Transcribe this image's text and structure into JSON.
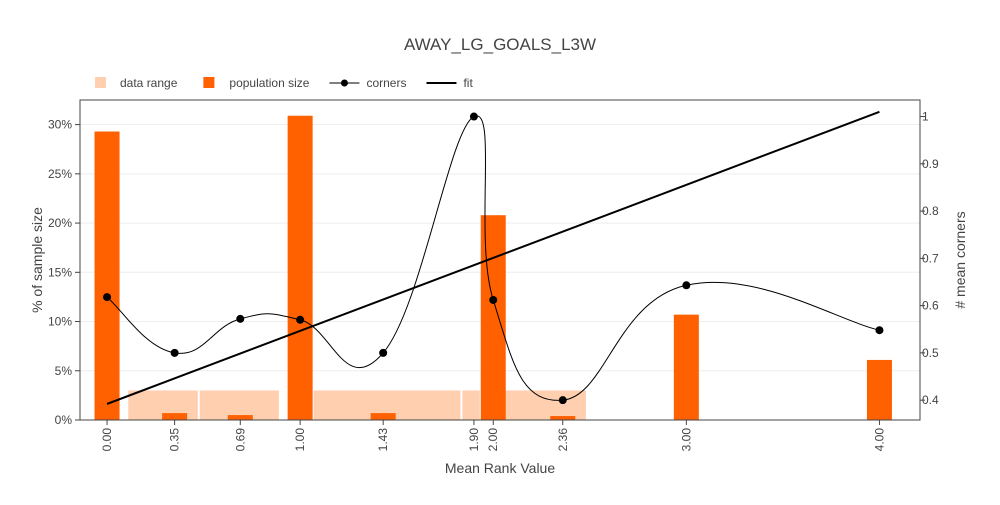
{
  "chart_data": {
    "type": "bar",
    "title": "AWAY_LG_GOALS_L3W",
    "xlabel": "Mean Rank Value",
    "ylabel": "% of sample size",
    "y2label": "# mean corners",
    "xlim": [
      -0.14,
      4.21
    ],
    "ylim": [
      0,
      32.5
    ],
    "y2lim": [
      0.358,
      1.035
    ],
    "yticks": [
      0,
      5,
      10,
      15,
      20,
      25,
      30
    ],
    "yticklabels": [
      "0%",
      "5%",
      "10%",
      "15%",
      "20%",
      "25%",
      "30%"
    ],
    "y2ticks": [
      0.4,
      0.5,
      0.6,
      0.7,
      0.8,
      0.9,
      1
    ],
    "y2ticklabels": [
      "0.4",
      "0.5",
      "0.6",
      "0.7",
      "0.8",
      "0.9",
      "1"
    ],
    "xticks": [
      0.0,
      0.35,
      0.69,
      1.0,
      1.43,
      1.9,
      2.0,
      2.36,
      3.0,
      4.0
    ],
    "xticklabels": [
      "0.00",
      "0.35",
      "0.69",
      "1.00",
      "1.43",
      "1.90",
      "2.00",
      "2.36",
      "3.00",
      "4.00"
    ],
    "legend": {
      "placement": "top-left",
      "items": [
        {
          "label": "data range",
          "kind": "bar-light"
        },
        {
          "label": "population size",
          "kind": "bar"
        },
        {
          "label": "corners",
          "kind": "line-marker"
        },
        {
          "label": "fit",
          "kind": "line"
        }
      ]
    },
    "colors": {
      "population": "#ff6000",
      "range": "#ffcfb0",
      "corners": "#000000",
      "fit": "#000000"
    },
    "population_size": [
      {
        "x": 0.0,
        "value": 29.3
      },
      {
        "x": 0.35,
        "value": 0.7
      },
      {
        "x": 0.69,
        "value": 0.5
      },
      {
        "x": 1.0,
        "value": 30.9
      },
      {
        "x": 1.43,
        "value": 0.7
      },
      {
        "x": 2.0,
        "value": 20.8
      },
      {
        "x": 2.36,
        "value": 0.4
      },
      {
        "x": 3.0,
        "value": 10.7
      },
      {
        "x": 4.0,
        "value": 6.1
      }
    ],
    "data_range": [
      {
        "from": 0.11,
        "to": 0.47,
        "value": 3.0
      },
      {
        "from": 0.48,
        "to": 0.89,
        "value": 3.0
      },
      {
        "from": 1.07,
        "to": 1.83,
        "value": 3.0
      },
      {
        "from": 1.84,
        "to": 1.93,
        "value": 3.0
      },
      {
        "from": 2.04,
        "to": 2.48,
        "value": 3.0
      }
    ],
    "corners": {
      "x": [
        0.0,
        0.35,
        0.69,
        1.0,
        1.43,
        1.9,
        2.0,
        2.36,
        3.0,
        4.0
      ],
      "y": [
        0.618,
        0.5,
        0.572,
        0.57,
        0.5,
        1.0,
        0.612,
        0.4,
        0.643,
        0.548
      ]
    },
    "fit": {
      "x": [
        0.0,
        4.0
      ],
      "y": [
        0.392,
        1.01
      ]
    }
  }
}
